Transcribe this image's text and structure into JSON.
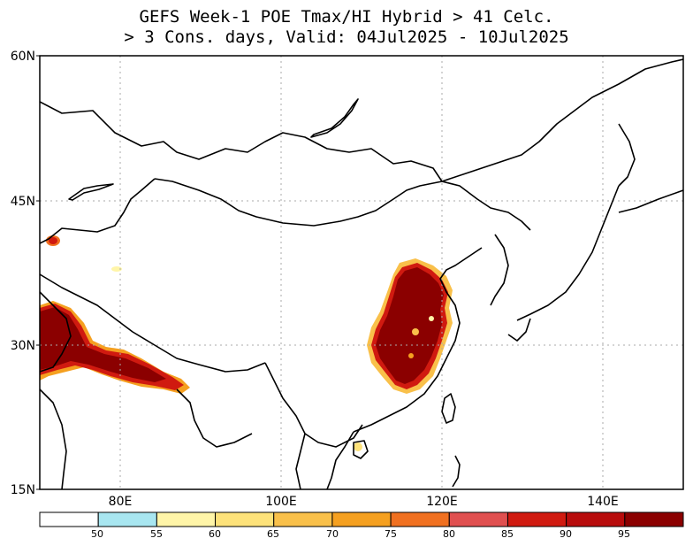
{
  "title": {
    "line1": "GEFS Week-1 POE Tmax/HI Hybrid > 41 Celc.",
    "line2": "> 3 Cons. days, Valid: 04Jul2025 - 10Jul2025"
  },
  "axes": {
    "lat_labels": [
      "60N",
      "45N",
      "30N",
      "15N"
    ],
    "lon_labels": [
      "80E",
      "100E",
      "120E",
      "140E"
    ]
  },
  "colorbar": {
    "ticks": [
      "50",
      "55",
      "60",
      "65",
      "70",
      "75",
      "80",
      "85",
      "90",
      "95"
    ],
    "colors": [
      "#ffffff",
      "#a8e6f0",
      "#fff5a8",
      "#fde27a",
      "#f9c04a",
      "#f5a020",
      "#f07020",
      "#e05050",
      "#d01a10",
      "#b80c0c",
      "#8b0000"
    ]
  },
  "map": {
    "extent": {
      "lon": [
        70,
        150
      ],
      "lat": [
        15,
        60
      ]
    },
    "grid_lon": [
      80,
      100,
      120,
      140
    ],
    "grid_lat": [
      45,
      30
    ],
    "hot_regions": [
      "north-india-pakistan",
      "east-china",
      "western-china-spot"
    ]
  }
}
